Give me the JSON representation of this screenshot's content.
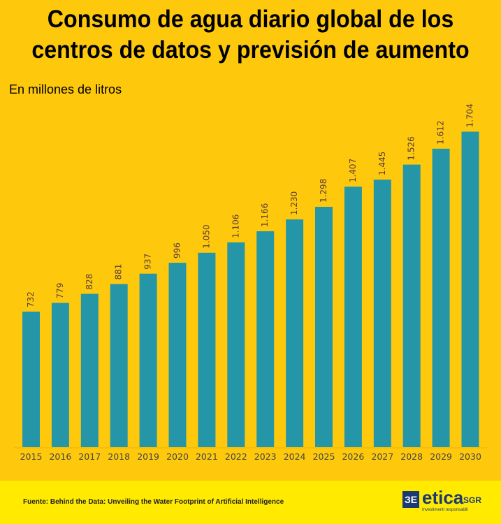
{
  "chart_data": {
    "type": "bar",
    "title": "Consumo de agua diario global de los centros de datos y previsión de aumento",
    "ylabel": "En millones de litros",
    "xlabel": "",
    "categories": [
      "2015",
      "2016",
      "2017",
      "2018",
      "2019",
      "2020",
      "2021",
      "2022",
      "2023",
      "2024",
      "2025",
      "2026",
      "2027",
      "2028",
      "2029",
      "2030"
    ],
    "values": [
      732,
      779,
      828,
      881,
      937,
      996,
      1050,
      1106,
      1166,
      1230,
      1298,
      1407,
      1445,
      1526,
      1612,
      1704
    ],
    "data_labels": [
      "732",
      "779",
      "828",
      "881",
      "937",
      "996",
      "1.050",
      "1.106",
      "1.166",
      "1.230",
      "1.298",
      "1.407",
      "1.445",
      "1.526",
      "1.612",
      "1.704"
    ],
    "ylim": [
      0,
      1800
    ],
    "grid": false,
    "bar_color": "#2596a8",
    "background_color": "#fec90c"
  },
  "footer": {
    "source": "Fuente: Behind the Data: Unveiling the Water Footprint of Artificial Intelligence",
    "logo_text": "etica SGR",
    "logo_tagline": "Investimenti responsabili"
  }
}
